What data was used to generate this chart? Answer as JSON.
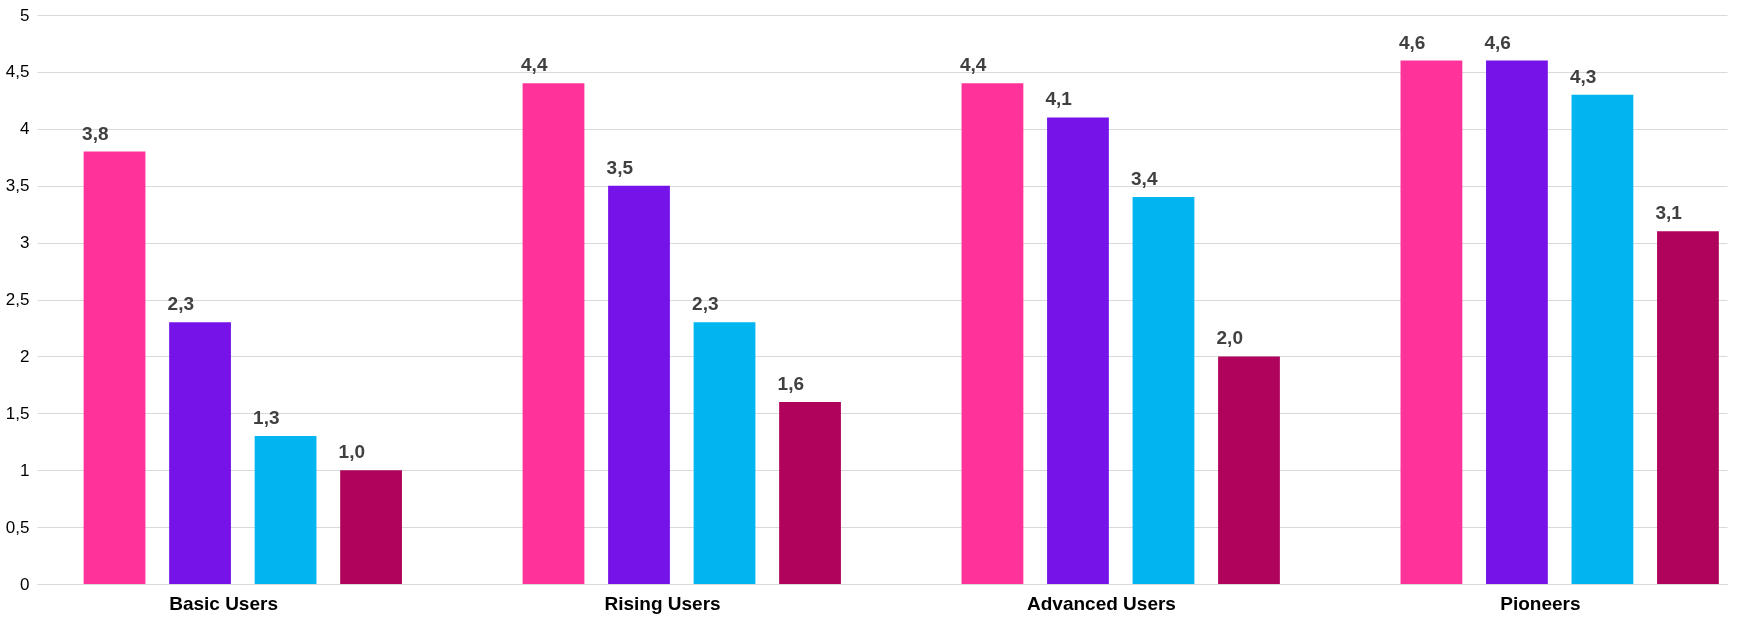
{
  "chart_data": {
    "type": "bar",
    "categories": [
      "Basic Users",
      "Rising Users",
      "Advanced Users",
      "Pioneers"
    ],
    "series": [
      {
        "color": "#ff3399",
        "values": [
          3.8,
          4.4,
          4.4,
          4.6
        ],
        "value_labels": [
          "3,8",
          "4,4",
          "4,4",
          "4,6"
        ]
      },
      {
        "color": "#7513e8",
        "values": [
          2.3,
          3.5,
          4.1,
          4.6
        ],
        "value_labels": [
          "2,3",
          "3,5",
          "4,1",
          "4,6"
        ]
      },
      {
        "color": "#00b5f0",
        "values": [
          1.3,
          2.3,
          3.4,
          4.3
        ],
        "value_labels": [
          "1,3",
          "2,3",
          "3,4",
          "4,3"
        ]
      },
      {
        "color": "#b0035c",
        "values": [
          1.0,
          1.6,
          2.0,
          3.1
        ],
        "value_labels": [
          "1,0",
          "1,6",
          "2,0",
          "3,1"
        ]
      }
    ],
    "ylim": [
      0,
      5
    ],
    "yticks": [
      0,
      {
        "value": 0.5,
        "label": "0,5"
      },
      1,
      {
        "value": 1.5,
        "label": "1,5"
      },
      2,
      {
        "value": 2.5,
        "label": "2,5"
      },
      3,
      {
        "value": 3.5,
        "label": "3,5"
      },
      4,
      {
        "value": 4.5,
        "label": "4,5"
      },
      5
    ],
    "grid": "y",
    "legend": false
  }
}
